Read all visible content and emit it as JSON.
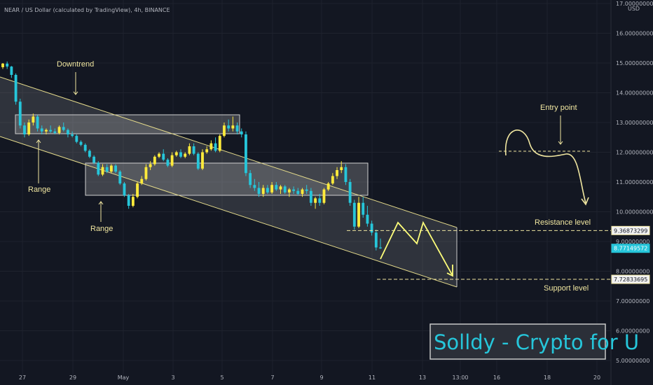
{
  "header": {
    "title": "NEAR / US Dollar (calculated by TradingView), 4h, BINANCE"
  },
  "chart_data": {
    "type": "candlestick",
    "currency": "USD",
    "y_axis_ticks": [
      "5.00000000",
      "6.00000000",
      "7.00000000",
      "8.00000000",
      "9.00000000",
      "10.00000000",
      "11.00000000",
      "12.00000000",
      "13.00000000",
      "14.00000000",
      "15.00000000",
      "16.00000000",
      "17.00000000"
    ],
    "y_values": [
      5,
      6,
      7,
      8,
      9,
      10,
      11,
      12,
      13,
      14,
      15,
      16,
      17
    ],
    "x_axis_ticks": [
      "27",
      "29",
      "May",
      "3",
      "5",
      "7",
      "9",
      "11",
      "13",
      "13:00",
      "16",
      "18",
      "20"
    ],
    "ylim": [
      4.6,
      17.1
    ],
    "grid": true,
    "price_labels": [
      {
        "text": "9.36873299",
        "value": 9.36873299,
        "style": "resistance"
      },
      {
        "text": "8.77149572",
        "value": 8.77149572,
        "style": "last"
      },
      {
        "text": "7.72833695",
        "value": 7.72833695,
        "style": "support"
      }
    ],
    "annotations": {
      "downtrend": "Downtrend",
      "range1": "Range",
      "range2": "Range",
      "entry": "Entry point",
      "resistance": "Resistance level",
      "support": "Support level"
    },
    "levels": {
      "resistance": 9.36873299,
      "support": 7.72833695,
      "entry": 12.0
    },
    "candles": [
      [
        14.86,
        15.0,
        14.8,
        14.98
      ],
      [
        14.98,
        15.05,
        14.8,
        14.88
      ],
      [
        14.88,
        14.9,
        14.5,
        14.6
      ],
      [
        14.6,
        14.65,
        13.6,
        13.7
      ],
      [
        13.7,
        13.8,
        12.8,
        12.9
      ],
      [
        12.9,
        13.0,
        12.5,
        12.6
      ],
      [
        12.6,
        13.1,
        12.55,
        13.0
      ],
      [
        13.0,
        13.3,
        12.9,
        13.2
      ],
      [
        13.2,
        13.25,
        12.7,
        12.8
      ],
      [
        12.8,
        12.9,
        12.6,
        12.7
      ],
      [
        12.7,
        12.8,
        12.6,
        12.75
      ],
      [
        12.75,
        12.9,
        12.65,
        12.7
      ],
      [
        12.7,
        12.8,
        12.6,
        12.65
      ],
      [
        12.65,
        12.9,
        12.6,
        12.85
      ],
      [
        12.85,
        13.0,
        12.7,
        12.75
      ],
      [
        12.75,
        12.8,
        12.5,
        12.6
      ],
      [
        12.6,
        12.7,
        12.5,
        12.55
      ],
      [
        12.55,
        12.6,
        12.3,
        12.35
      ],
      [
        12.35,
        12.4,
        12.2,
        12.25
      ],
      [
        12.25,
        12.3,
        12.0,
        12.05
      ],
      [
        12.05,
        12.1,
        11.8,
        11.85
      ],
      [
        11.85,
        11.9,
        11.6,
        11.65
      ],
      [
        11.65,
        11.7,
        11.2,
        11.25
      ],
      [
        11.25,
        11.6,
        11.2,
        11.5
      ],
      [
        11.5,
        11.6,
        11.3,
        11.35
      ],
      [
        11.35,
        11.6,
        11.3,
        11.55
      ],
      [
        11.55,
        11.6,
        11.3,
        11.35
      ],
      [
        11.35,
        11.4,
        10.9,
        10.95
      ],
      [
        10.95,
        11.0,
        10.5,
        10.55
      ],
      [
        10.55,
        10.6,
        10.1,
        10.2
      ],
      [
        10.2,
        10.6,
        10.15,
        10.5
      ],
      [
        10.5,
        11.0,
        10.45,
        10.95
      ],
      [
        10.95,
        11.2,
        10.9,
        11.1
      ],
      [
        11.1,
        11.6,
        11.05,
        11.5
      ],
      [
        11.5,
        11.7,
        11.4,
        11.6
      ],
      [
        11.6,
        11.9,
        11.55,
        11.85
      ],
      [
        11.85,
        12.0,
        11.8,
        11.95
      ],
      [
        11.95,
        12.1,
        11.7,
        11.75
      ],
      [
        11.75,
        11.8,
        11.5,
        11.55
      ],
      [
        11.55,
        12.0,
        11.5,
        11.9
      ],
      [
        11.9,
        12.05,
        11.85,
        12.0
      ],
      [
        12.0,
        12.1,
        11.8,
        11.85
      ],
      [
        11.85,
        12.0,
        11.8,
        11.95
      ],
      [
        11.95,
        12.3,
        11.9,
        12.2
      ],
      [
        12.2,
        12.3,
        11.9,
        11.95
      ],
      [
        11.95,
        12.0,
        11.4,
        11.45
      ],
      [
        11.45,
        12.1,
        11.4,
        12.0
      ],
      [
        12.0,
        12.2,
        11.95,
        12.1
      ],
      [
        12.1,
        12.4,
        12.05,
        12.3
      ],
      [
        12.3,
        12.5,
        12.0,
        12.05
      ],
      [
        12.05,
        12.6,
        12.0,
        12.55
      ],
      [
        12.55,
        13.0,
        12.5,
        12.9
      ],
      [
        12.9,
        13.1,
        12.7,
        12.8
      ],
      [
        12.8,
        13.2,
        12.7,
        12.9
      ],
      [
        12.9,
        13.0,
        12.6,
        12.7
      ],
      [
        12.7,
        12.8,
        12.5,
        12.6
      ],
      [
        12.6,
        12.7,
        11.2,
        11.3
      ],
      [
        11.3,
        11.4,
        10.8,
        10.9
      ],
      [
        10.9,
        11.1,
        10.7,
        10.8
      ],
      [
        10.8,
        11.0,
        10.5,
        10.6
      ],
      [
        10.6,
        10.9,
        10.5,
        10.8
      ],
      [
        10.8,
        10.9,
        10.6,
        10.65
      ],
      [
        10.65,
        11.0,
        10.6,
        10.9
      ],
      [
        10.9,
        11.0,
        10.7,
        10.75
      ],
      [
        10.75,
        10.9,
        10.6,
        10.85
      ],
      [
        10.85,
        10.9,
        10.6,
        10.65
      ],
      [
        10.65,
        10.8,
        10.5,
        10.75
      ],
      [
        10.75,
        10.85,
        10.6,
        10.7
      ],
      [
        10.7,
        10.8,
        10.55,
        10.6
      ],
      [
        10.6,
        10.8,
        10.5,
        10.75
      ],
      [
        10.75,
        10.9,
        10.6,
        10.7
      ],
      [
        10.7,
        10.8,
        10.2,
        10.3
      ],
      [
        10.3,
        10.5,
        10.1,
        10.45
      ],
      [
        10.45,
        10.6,
        10.2,
        10.3
      ],
      [
        10.3,
        10.8,
        10.25,
        10.75
      ],
      [
        10.75,
        11.0,
        10.7,
        10.95
      ],
      [
        10.95,
        11.3,
        10.9,
        11.2
      ],
      [
        11.2,
        11.5,
        11.1,
        11.4
      ],
      [
        11.4,
        11.7,
        11.3,
        11.5
      ],
      [
        11.5,
        11.6,
        10.9,
        11.0
      ],
      [
        11.0,
        11.1,
        10.2,
        10.3
      ],
      [
        10.3,
        10.4,
        9.4,
        9.5
      ],
      [
        9.5,
        10.5,
        9.45,
        10.3
      ],
      [
        10.3,
        10.5,
        9.8,
        9.9
      ],
      [
        9.9,
        10.2,
        9.5,
        9.6
      ],
      [
        9.6,
        9.7,
        9.2,
        9.3
      ],
      [
        9.3,
        9.4,
        8.7,
        8.8
      ],
      [
        8.8,
        9.1,
        8.75,
        8.77
      ]
    ]
  },
  "watermark": {
    "text": "Solldy - Crypto for U"
  }
}
